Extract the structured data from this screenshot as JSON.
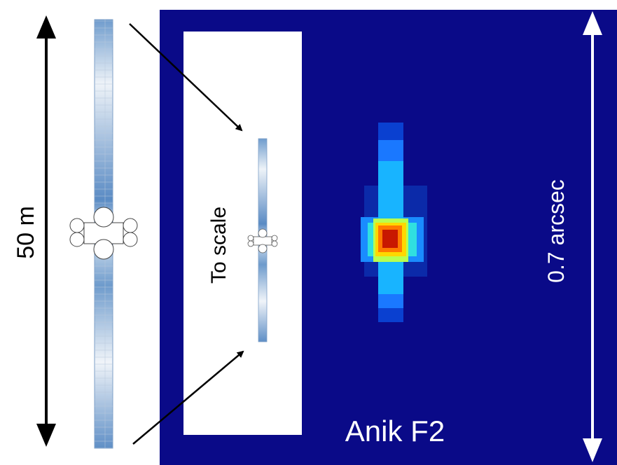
{
  "labels": {
    "size_label": "50 m",
    "to_scale": "To scale",
    "angular_size": "0.7 arcsec",
    "satellite_name": "Anik F2"
  }
}
